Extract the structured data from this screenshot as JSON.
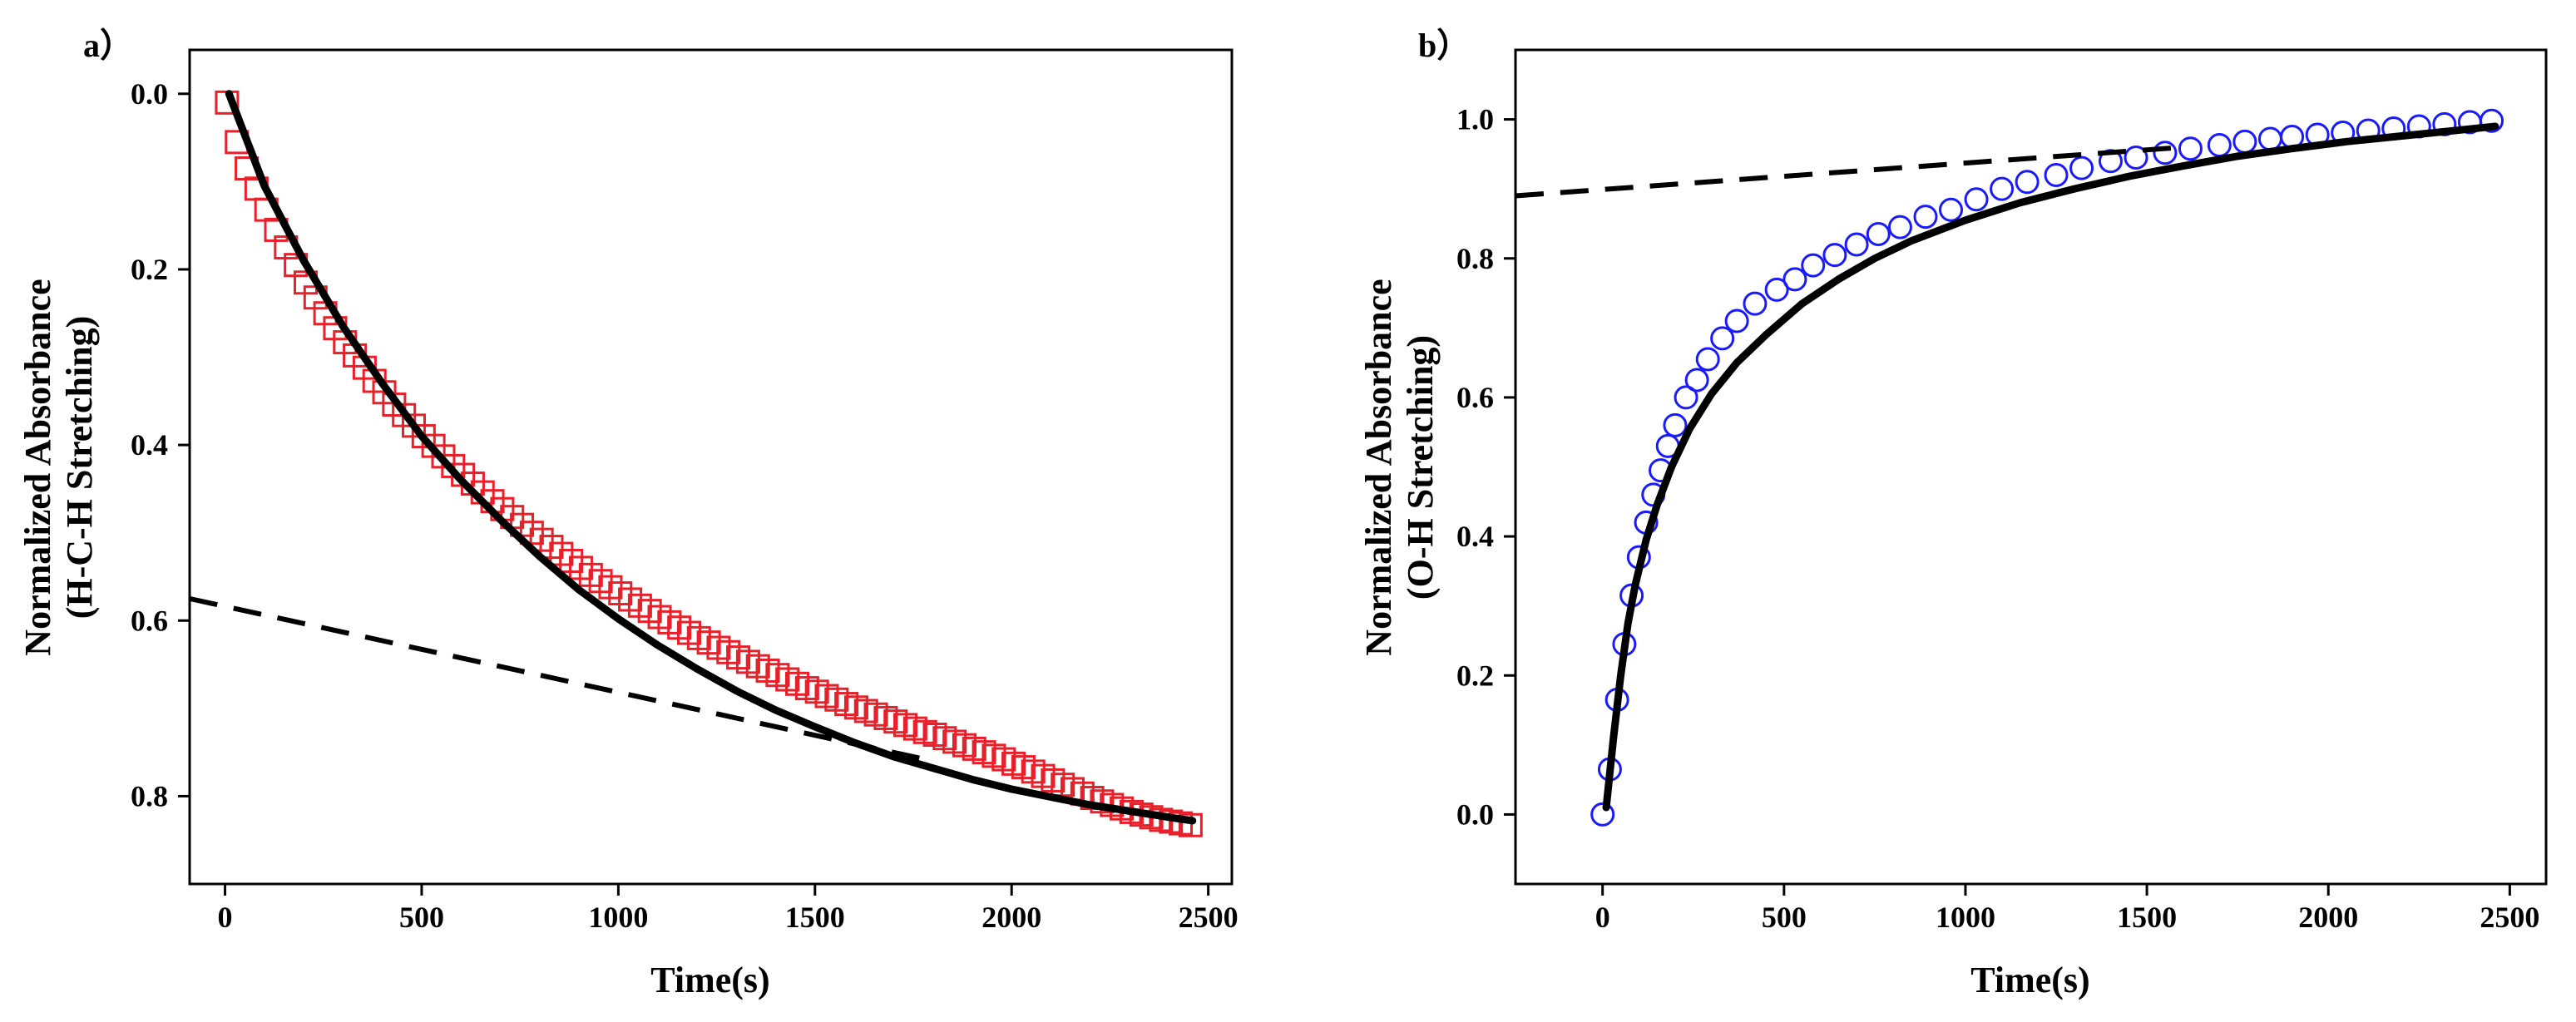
{
  "chart_data": [
    {
      "type": "scatter",
      "panel_label": "a）",
      "xlabel": "Time(s)",
      "ylabel_lines": [
        "Normalized Absorbance",
        "(H-C-H Stretching)"
      ],
      "xlim": [
        -90,
        2560
      ],
      "ylim": [
        -0.05,
        0.9
      ],
      "y_inverted": true,
      "xticks": [
        0,
        500,
        1000,
        1500,
        2000,
        2500
      ],
      "xtick_labels": [
        "0",
        "500",
        "1000",
        "1500",
        "2000",
        "2500"
      ],
      "yticks": [
        0.0,
        0.2,
        0.4,
        0.6,
        0.8
      ],
      "ytick_labels": [
        "0.0",
        "0.2",
        "0.4",
        "0.6",
        "0.8"
      ],
      "series": [
        {
          "name": "data",
          "marker": "square",
          "color": "#e8202a",
          "x": [
            5,
            30,
            55,
            80,
            105,
            130,
            155,
            180,
            205,
            230,
            255,
            280,
            305,
            330,
            355,
            380,
            405,
            430,
            455,
            480,
            505,
            530,
            555,
            580,
            605,
            630,
            655,
            680,
            705,
            730,
            755,
            780,
            805,
            830,
            855,
            880,
            905,
            930,
            955,
            980,
            1005,
            1030,
            1055,
            1080,
            1105,
            1130,
            1155,
            1180,
            1205,
            1230,
            1255,
            1280,
            1305,
            1330,
            1355,
            1380,
            1405,
            1430,
            1455,
            1480,
            1505,
            1530,
            1555,
            1580,
            1605,
            1630,
            1655,
            1680,
            1705,
            1730,
            1755,
            1780,
            1805,
            1830,
            1855,
            1880,
            1905,
            1930,
            1955,
            1980,
            2005,
            2030,
            2055,
            2080,
            2105,
            2130,
            2155,
            2180,
            2205,
            2230,
            2255,
            2280,
            2305,
            2330,
            2355,
            2380,
            2405,
            2430,
            2455
          ],
          "y": [
            0.01,
            0.055,
            0.085,
            0.108,
            0.132,
            0.155,
            0.175,
            0.195,
            0.215,
            0.232,
            0.25,
            0.267,
            0.283,
            0.298,
            0.312,
            0.327,
            0.34,
            0.354,
            0.366,
            0.378,
            0.39,
            0.401,
            0.413,
            0.424,
            0.434,
            0.444,
            0.454,
            0.464,
            0.473,
            0.482,
            0.491,
            0.5,
            0.508,
            0.516,
            0.524,
            0.532,
            0.54,
            0.548,
            0.555,
            0.562,
            0.569,
            0.576,
            0.583,
            0.589,
            0.596,
            0.602,
            0.608,
            0.614,
            0.62,
            0.625,
            0.631,
            0.636,
            0.642,
            0.647,
            0.652,
            0.657,
            0.662,
            0.667,
            0.672,
            0.677,
            0.681,
            0.686,
            0.69,
            0.695,
            0.699,
            0.703,
            0.707,
            0.711,
            0.715,
            0.719,
            0.723,
            0.727,
            0.73,
            0.734,
            0.738,
            0.742,
            0.746,
            0.75,
            0.754,
            0.758,
            0.763,
            0.767,
            0.772,
            0.777,
            0.782,
            0.787,
            0.792,
            0.797,
            0.802,
            0.806,
            0.81,
            0.814,
            0.818,
            0.821,
            0.824,
            0.827,
            0.829,
            0.831,
            0.833
          ]
        },
        {
          "name": "fit",
          "style": "solid",
          "color": "#000000",
          "x": [
            10,
            100,
            200,
            300,
            400,
            500,
            600,
            700,
            800,
            900,
            1000,
            1100,
            1200,
            1300,
            1400,
            1500,
            1600,
            1700,
            1800,
            1900,
            2000,
            2100,
            2200,
            2300,
            2400,
            2460
          ],
          "y": [
            0.0,
            0.105,
            0.19,
            0.265,
            0.33,
            0.39,
            0.44,
            0.485,
            0.527,
            0.565,
            0.598,
            0.628,
            0.655,
            0.68,
            0.702,
            0.721,
            0.739,
            0.755,
            0.768,
            0.781,
            0.792,
            0.801,
            0.81,
            0.817,
            0.824,
            0.828
          ]
        },
        {
          "name": "linear",
          "style": "dashed",
          "color": "#000000",
          "x": [
            -90,
            1800
          ],
          "y": [
            0.575,
            0.76
          ]
        }
      ]
    },
    {
      "type": "scatter",
      "panel_label": "b）",
      "xlabel": "Time(s)",
      "ylabel_lines": [
        "Normalized Absorbance",
        "(O-H Stretching)"
      ],
      "xlim": [
        -240,
        2600
      ],
      "ylim": [
        -0.1,
        1.1
      ],
      "y_inverted": false,
      "xticks": [
        0,
        500,
        1000,
        1500,
        2000,
        2500
      ],
      "xtick_labels": [
        "0",
        "500",
        "1000",
        "1500",
        "2000",
        "2500"
      ],
      "yticks": [
        0.0,
        0.2,
        0.4,
        0.6,
        0.8,
        1.0
      ],
      "ytick_labels": [
        "0.0",
        "0.2",
        "0.4",
        "0.6",
        "0.8",
        "1.0"
      ],
      "series": [
        {
          "name": "data",
          "marker": "circle",
          "color": "#1a1aff",
          "x": [
            0,
            20,
            40,
            60,
            80,
            100,
            120,
            140,
            160,
            180,
            200,
            230,
            260,
            290,
            330,
            370,
            420,
            480,
            530,
            580,
            640,
            700,
            760,
            820,
            890,
            960,
            1030,
            1100,
            1170,
            1250,
            1320,
            1400,
            1470,
            1550,
            1620,
            1700,
            1770,
            1840,
            1900,
            1970,
            2040,
            2110,
            2180,
            2250,
            2320,
            2390,
            2450
          ],
          "y": [
            0.0,
            0.065,
            0.165,
            0.245,
            0.315,
            0.37,
            0.42,
            0.46,
            0.495,
            0.53,
            0.56,
            0.6,
            0.625,
            0.655,
            0.685,
            0.71,
            0.735,
            0.755,
            0.77,
            0.79,
            0.805,
            0.82,
            0.835,
            0.845,
            0.86,
            0.87,
            0.885,
            0.9,
            0.91,
            0.92,
            0.93,
            0.94,
            0.945,
            0.952,
            0.958,
            0.963,
            0.968,
            0.972,
            0.975,
            0.978,
            0.981,
            0.984,
            0.987,
            0.99,
            0.993,
            0.996,
            0.998
          ]
        },
        {
          "name": "fit",
          "style": "solid",
          "color": "#000000",
          "x": [
            10,
            30,
            50,
            70,
            90,
            120,
            150,
            190,
            240,
            300,
            370,
            450,
            550,
            650,
            750,
            850,
            1000,
            1150,
            1300,
            1450,
            1600,
            1750,
            1900,
            2050,
            2200,
            2350,
            2460
          ],
          "y": [
            0.01,
            0.11,
            0.2,
            0.275,
            0.33,
            0.395,
            0.445,
            0.5,
            0.555,
            0.605,
            0.65,
            0.69,
            0.735,
            0.77,
            0.8,
            0.825,
            0.855,
            0.88,
            0.9,
            0.918,
            0.933,
            0.947,
            0.958,
            0.968,
            0.976,
            0.984,
            0.99
          ]
        },
        {
          "name": "linear",
          "style": "dashed",
          "color": "#000000",
          "x": [
            -240,
            1600
          ],
          "y": [
            0.89,
            0.96
          ]
        }
      ]
    }
  ]
}
